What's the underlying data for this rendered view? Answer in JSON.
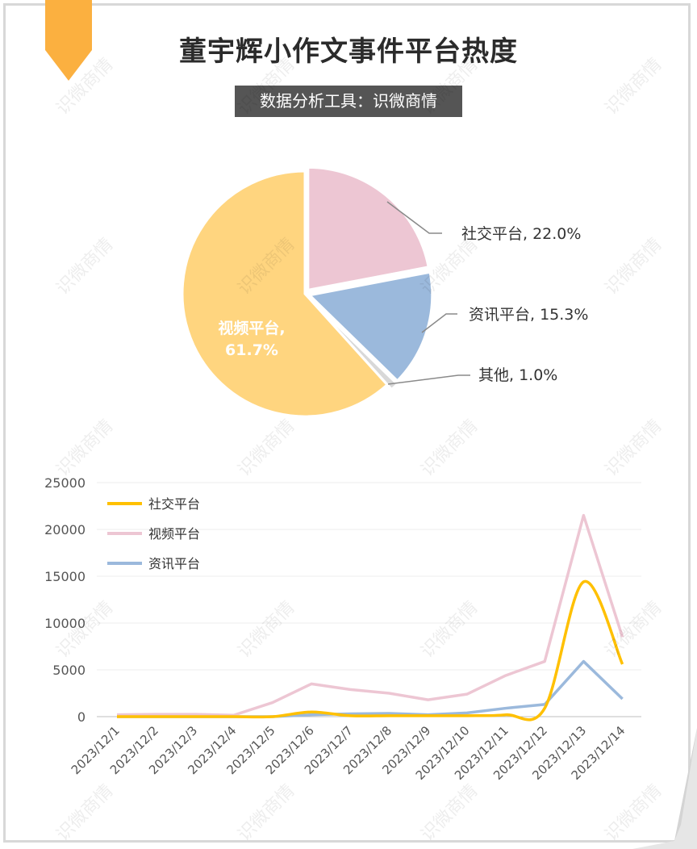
{
  "header": {
    "title": "董宇辉小作文事件平台热度",
    "subtitle": "数据分析工具：识微商情",
    "watermark": "识微商情"
  },
  "chart_data": [
    {
      "type": "pie",
      "slices": [
        {
          "label": "视频平台",
          "percent_label": "61.7%",
          "value": 61.7,
          "color": "#FFD57F"
        },
        {
          "label": "社交平台",
          "percent_label": "22.0%",
          "value": 22.0,
          "color": "#EDC6D3"
        },
        {
          "label": "资讯平台",
          "percent_label": "15.3%",
          "value": 15.3,
          "color": "#9BB9DC"
        },
        {
          "label": "其他",
          "percent_label": "1.0%",
          "value": 1.0,
          "color": "#D8D8D8"
        }
      ]
    },
    {
      "type": "line",
      "categories": [
        "2023/12/1",
        "2023/12/2",
        "2023/12/3",
        "2023/12/4",
        "2023/12/5",
        "2023/12/6",
        "2023/12/7",
        "2023/12/8",
        "2023/12/9",
        "2023/12/10",
        "2023/12/11",
        "2023/12/12",
        "2023/12/13",
        "2023/12/14"
      ],
      "series": [
        {
          "name": "社交平台",
          "color": "#FFC000",
          "values": [
            0,
            0,
            0,
            0,
            0,
            500,
            100,
            100,
            100,
            100,
            200,
            900,
            14400,
            5600
          ]
        },
        {
          "name": "视频平台",
          "color": "#EDC6D3",
          "values": [
            200,
            250,
            250,
            150,
            1500,
            3500,
            2900,
            2500,
            1800,
            2400,
            4400,
            5900,
            21500,
            8500
          ]
        },
        {
          "name": "资讯平台",
          "color": "#9BB9DC",
          "values": [
            0,
            0,
            0,
            0,
            0,
            200,
            300,
            350,
            200,
            400,
            900,
            1300,
            5900,
            1900
          ]
        }
      ],
      "yticks": [
        "0",
        "5000",
        "10000",
        "15000",
        "20000",
        "25000"
      ],
      "ylim": [
        0,
        25000
      ],
      "legend": "top-left",
      "grid": true
    }
  ]
}
